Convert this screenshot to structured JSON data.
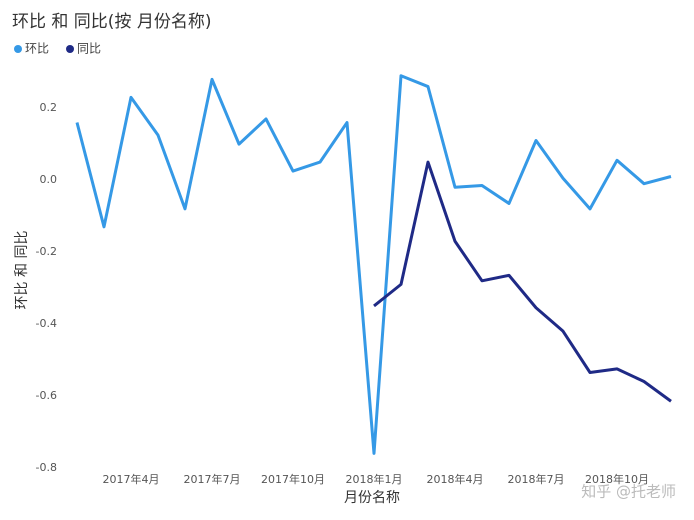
{
  "chart_data": {
    "type": "line",
    "title": "环比 和 同比(按 月份名称)",
    "x_label": "月份名称",
    "y_label": "环比 和 同比",
    "categories": [
      null,
      null,
      "2017年4月",
      null,
      null,
      "2017年7月",
      null,
      null,
      "2017年10月",
      null,
      null,
      "2018年1月",
      null,
      null,
      "2018年4月",
      null,
      null,
      "2018年7月",
      null,
      null,
      "2018年10月",
      null,
      null
    ],
    "series": [
      {
        "name": "环比",
        "color": "#3599e6",
        "values": [
          0.16,
          -0.13,
          0.23,
          0.125,
          -0.08,
          0.28,
          0.1,
          0.17,
          0.025,
          0.05,
          0.16,
          -0.76,
          0.29,
          0.26,
          -0.02,
          -0.015,
          -0.065,
          0.11,
          0.005,
          -0.08,
          0.055,
          -0.01,
          0.01
        ]
      },
      {
        "name": "同比",
        "color": "#1f2a86",
        "values": [
          null,
          null,
          null,
          null,
          null,
          null,
          null,
          null,
          null,
          null,
          null,
          -0.35,
          -0.29,
          0.05,
          -0.17,
          -0.28,
          -0.265,
          -0.355,
          -0.42,
          -0.535,
          -0.525,
          -0.56,
          -0.615
        ]
      }
    ],
    "ylim": [
      -0.82,
      0.32
    ],
    "yticks": [
      0.2,
      {
        "value": 0,
        "label": "0.0"
      },
      -0.2,
      -0.4,
      -0.6,
      -0.8
    ],
    "grid": false,
    "watermark": "知乎 @托老师"
  }
}
